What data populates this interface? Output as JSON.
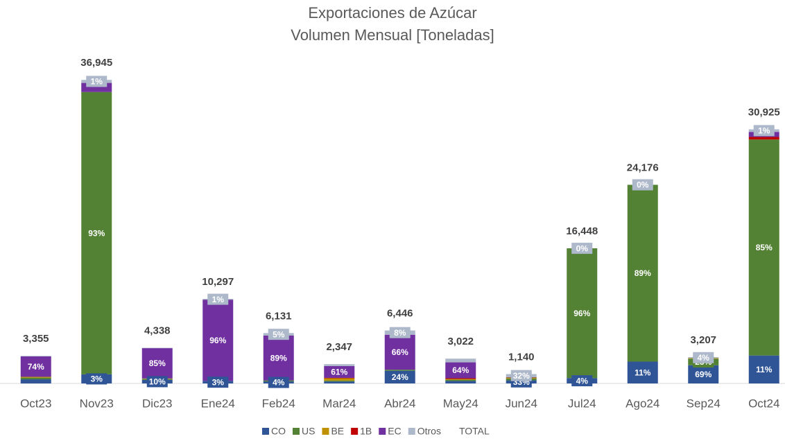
{
  "chart_data": {
    "type": "bar",
    "stacked": true,
    "title": [
      "Exportaciones de Azúcar",
      "Volumen Mensual [Toneladas]"
    ],
    "categories": [
      "Oct23",
      "Nov23",
      "Dic23",
      "Ene24",
      "Feb24",
      "Mar24",
      "Abr24",
      "May24",
      "Jun24",
      "Jul24",
      "Ago24",
      "Sep24",
      "Oct24"
    ],
    "ylim": [
      0,
      40000
    ],
    "series": [
      {
        "name": "CO",
        "color": "#2f5597",
        "values": [
          15,
          3,
          10,
          3,
          4,
          10,
          24,
          10,
          33,
          4,
          11,
          69,
          11
        ],
        "value_labels": [
          null,
          "3%",
          "10%",
          "3%",
          "4%",
          null,
          "24%",
          null,
          "33%",
          "4%",
          "11%",
          "69%",
          "11%"
        ]
      },
      {
        "name": "US",
        "color": "#548235",
        "values": [
          6,
          93,
          3,
          0,
          2,
          5,
          2,
          5,
          20,
          96,
          89,
          25,
          85
        ],
        "value_labels": [
          null,
          "93%",
          null,
          null,
          null,
          null,
          null,
          null,
          null,
          "96%",
          "89%",
          "25%",
          "85%"
        ]
      },
      {
        "name": "BE",
        "color": "#bf9000",
        "values": [
          3,
          0,
          1,
          0,
          0,
          12,
          0,
          3,
          10,
          0,
          0,
          2,
          0
        ],
        "value_labels": [
          null,
          null,
          null,
          null,
          null,
          null,
          null,
          null,
          null,
          null,
          null,
          null,
          null
        ]
      },
      {
        "name": "1B",
        "color": "#c00000",
        "values": [
          0,
          0,
          0,
          0,
          0,
          2,
          0,
          3,
          0,
          0,
          0,
          0,
          1
        ],
        "value_labels": [
          null,
          null,
          null,
          null,
          null,
          null,
          null,
          null,
          null,
          null,
          null,
          null,
          null
        ]
      },
      {
        "name": "EC",
        "color": "#7030a0",
        "values": [
          74,
          3,
          85,
          96,
          89,
          61,
          66,
          64,
          5,
          0,
          0,
          0,
          2
        ],
        "value_labels": [
          "74%",
          null,
          "85%",
          "96%",
          "89%",
          "61%",
          "66%",
          "64%",
          null,
          null,
          null,
          null,
          null
        ]
      },
      {
        "name": "Otros",
        "color": "#adb9ca",
        "values": [
          2,
          1,
          1,
          1,
          5,
          10,
          8,
          15,
          32,
          0,
          0,
          4,
          1
        ],
        "value_labels": [
          null,
          "1%",
          null,
          "1%",
          "5%",
          null,
          "8%",
          null,
          "32%",
          "0%",
          "0%",
          "4%",
          "1%"
        ]
      }
    ],
    "total": {
      "name": "TOTAL",
      "values": [
        3355,
        36945,
        4338,
        10297,
        6131,
        2347,
        6446,
        3022,
        1140,
        16448,
        24176,
        3207,
        30925
      ],
      "value_labels": [
        "3,355",
        "36,945",
        "4,338",
        "10,297",
        "6,131",
        "2,347",
        "6,446",
        "3,022",
        "1,140",
        "16,448",
        "24,176",
        "3,207",
        "30,925"
      ]
    },
    "legend": "bottom"
  }
}
